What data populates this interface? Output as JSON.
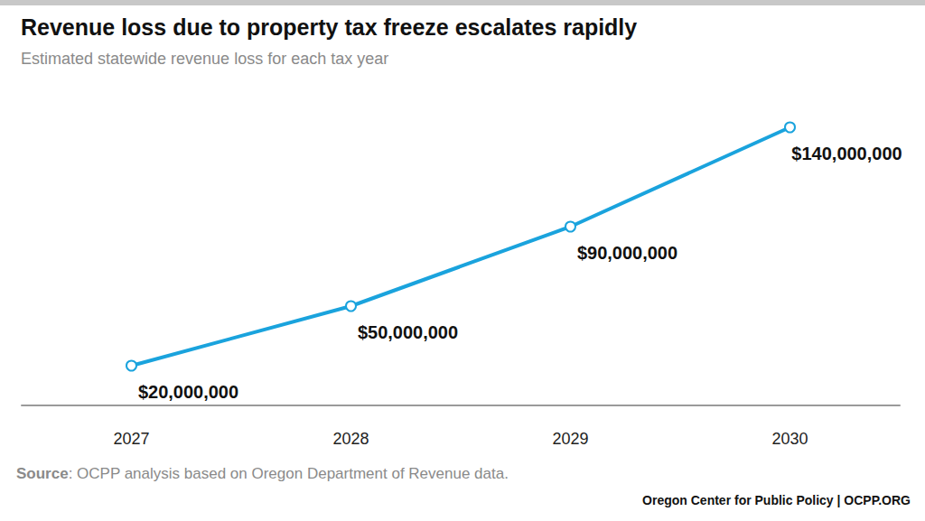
{
  "chart_data": {
    "type": "line",
    "title": "Revenue loss due to property tax freeze escalates rapidly",
    "subtitle": "Estimated statewide revenue loss for each tax year",
    "categories": [
      "2027",
      "2028",
      "2029",
      "2030"
    ],
    "values": [
      20000000,
      50000000,
      90000000,
      140000000
    ],
    "value_labels": [
      "$20,000,000",
      "$50,000,000",
      "$90,000,000",
      "$140,000,000"
    ],
    "color": "#1aa3dd",
    "marker": "circle",
    "ylim": [
      0,
      160000000
    ],
    "tick_labels": "x",
    "data_labels": true,
    "grid": false,
    "source": "Source: OCPP analysis based on Oregon Department of Revenue data.",
    "credit": "Oregon Center for Public Policy | OCPP.ORG"
  }
}
